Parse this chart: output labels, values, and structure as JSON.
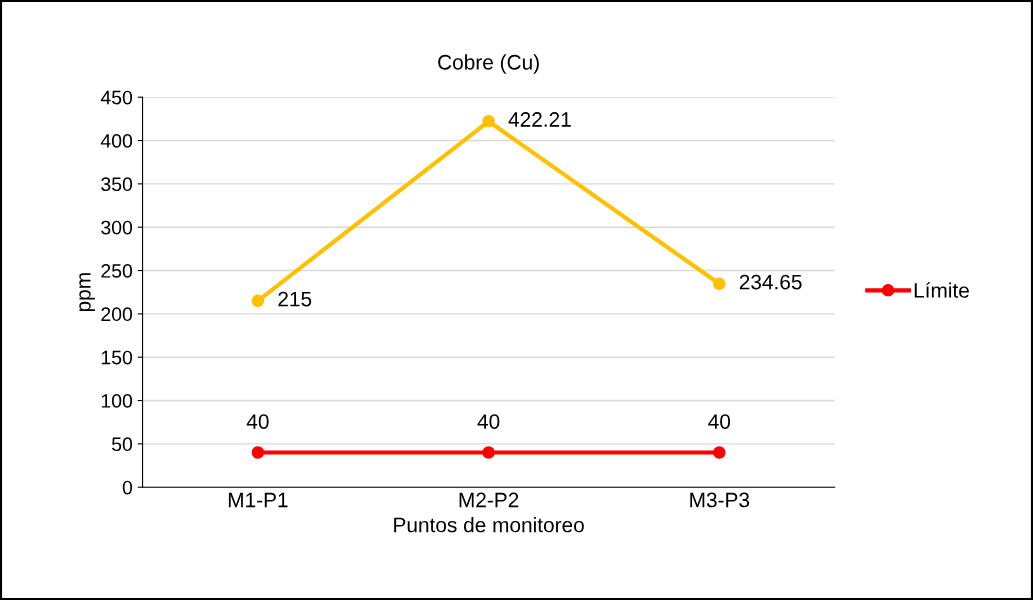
{
  "chart_data": {
    "type": "line",
    "title": "Cobre (Cu)",
    "xlabel": "Puntos de monitoreo",
    "ylabel": "ppm",
    "categories": [
      "M1-P1",
      "M2-P2",
      "M3-P3"
    ],
    "series": [
      {
        "color": "#ffc000",
        "values": [
          215,
          422.21,
          234.65
        ]
      },
      {
        "name": "Límite",
        "color": "#ff0000",
        "values": [
          40,
          40,
          40
        ]
      }
    ],
    "ylim": [
      0,
      450
    ],
    "yticks": [
      0,
      50,
      100,
      150,
      200,
      250,
      300,
      350,
      400,
      450
    ],
    "grid": "y",
    "legend": "right",
    "marker": "circle",
    "line_style": "solid",
    "data_labels": true
  }
}
